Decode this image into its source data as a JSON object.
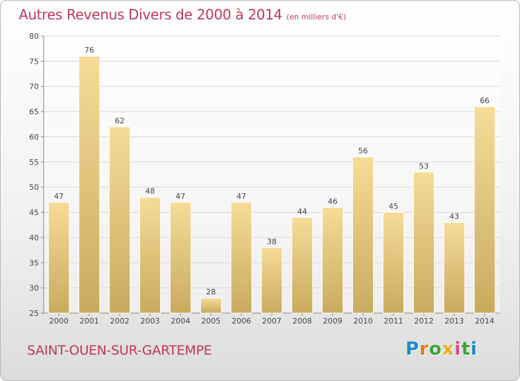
{
  "title": "Autres Revenus Divers de 2000 à 2014",
  "subtitle": "(en milliers d'€)",
  "location": "SAINT-OUEN-SUR-GARTEMPE",
  "logo": {
    "letters": [
      "P",
      "r",
      "o",
      "x",
      "i",
      "t",
      "i"
    ],
    "colors": [
      "#1f8ac9",
      "#e07b1f",
      "#3aa43a",
      "#e8b01d",
      "#d94b8c",
      "#3aa43a",
      "#1f8ac9"
    ]
  },
  "colors": {
    "title": "#c0395a",
    "bar_top": "#f6dc97",
    "bar_bottom": "#c9aa5f",
    "bar_edge": "#ffffff"
  },
  "chart_data": {
    "type": "bar",
    "categories": [
      "2000",
      "2001",
      "2002",
      "2003",
      "2004",
      "2005",
      "2006",
      "2007",
      "2008",
      "2009",
      "2010",
      "2011",
      "2012",
      "2013",
      "2014"
    ],
    "values": [
      47,
      76,
      62,
      48,
      47,
      28,
      47,
      38,
      44,
      46,
      56,
      45,
      53,
      43,
      66
    ],
    "ylim": [
      25,
      80
    ],
    "yticks": [
      25,
      30,
      35,
      40,
      45,
      50,
      55,
      60,
      65,
      70,
      75,
      80
    ],
    "grid": true,
    "data_labels": true
  }
}
